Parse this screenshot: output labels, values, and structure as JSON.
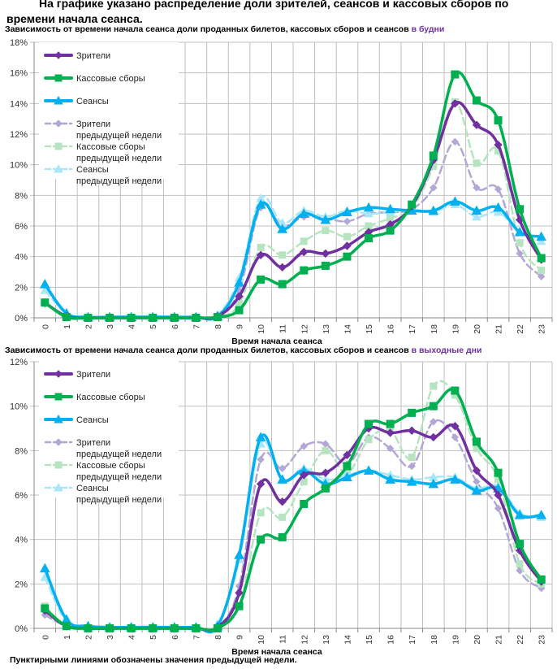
{
  "heading": "На графике указано распределение доли зрителей, сеансов и кассовых сборов по времени начала сеанса.",
  "footnote": "Пунктирными линиями обозначены значения предыдущей недели.",
  "colors": {
    "viewers": "#7030a0",
    "boxoffice": "#00b050",
    "sessions": "#00b0f0",
    "viewers_prev": "#b4a7d6",
    "boxoffice_prev": "#b7e4c0",
    "sessions_prev": "#a9e6f8",
    "grid": "#c0c0c0"
  },
  "chart_data": [
    {
      "type": "line",
      "title_prefix": "Зависимость от времени начала сеанса доли проданных билетов, кассовых сборов и сеансов",
      "title_accent": "в будни",
      "xlabel": "Время начала сеанса",
      "ylabel": "",
      "ylim": [
        0,
        18
      ],
      "yticks": [
        "0%",
        "2%",
        "4%",
        "6%",
        "8%",
        "10%",
        "12%",
        "14%",
        "16%",
        "18%"
      ],
      "x": [
        "0",
        "1",
        "2",
        "3",
        "4",
        "5",
        "6",
        "7",
        "8",
        "9",
        "10",
        "11",
        "12",
        "13",
        "14",
        "15",
        "16",
        "17",
        "18",
        "19",
        "20",
        "21",
        "22",
        "23"
      ],
      "grid": true,
      "legend_position": "top-left",
      "legend": [
        "Зрители",
        "Кассовые сборы",
        "Сеансы",
        "Зрители предыдущей недели",
        "Кассовые сборы предыдущей недели",
        "Сеансы предыдущей недели"
      ],
      "series": [
        {
          "name": "Зрители",
          "key": "viewers",
          "marker": "diamond",
          "dashed": false,
          "values": [
            1.0,
            0.1,
            0,
            0,
            0,
            0,
            0,
            0,
            0.1,
            1.4,
            4.1,
            3.3,
            4.3,
            4.2,
            4.7,
            5.6,
            6.1,
            7.3,
            10.3,
            14.0,
            12.6,
            11.3,
            6.4,
            3.8
          ]
        },
        {
          "name": "Кассовые сборы",
          "key": "boxoffice",
          "marker": "square",
          "dashed": false,
          "values": [
            1.0,
            0.05,
            0,
            0,
            0,
            0,
            0,
            0,
            0.05,
            0.5,
            2.5,
            2.2,
            3.1,
            3.4,
            4.0,
            5.2,
            5.7,
            7.4,
            10.6,
            15.9,
            14.2,
            12.9,
            7.1,
            3.9
          ]
        },
        {
          "name": "Сеансы",
          "key": "sessions",
          "marker": "triangle",
          "dashed": false,
          "values": [
            2.2,
            0.3,
            0.05,
            0.05,
            0.05,
            0.05,
            0.05,
            0.05,
            0.1,
            2.3,
            7.4,
            5.8,
            6.8,
            6.4,
            6.9,
            7.2,
            7.1,
            7.0,
            7.0,
            7.6,
            7.0,
            7.2,
            5.6,
            5.3
          ]
        },
        {
          "name": "Зрители предыдущей недели",
          "key": "viewers_prev",
          "marker": "diamond",
          "dashed": true,
          "values": [
            0.9,
            0.1,
            0,
            0,
            0,
            0,
            0,
            0,
            0.05,
            1.8,
            7.2,
            6.0,
            6.6,
            6.5,
            6.3,
            6.8,
            6.9,
            7.1,
            8.5,
            11.5,
            8.5,
            8.4,
            4.2,
            2.7
          ]
        },
        {
          "name": "Кассовые сборы предыдущей недели",
          "key": "boxoffice_prev",
          "marker": "square",
          "dashed": true,
          "values": [
            1.0,
            0.1,
            0,
            0,
            0,
            0,
            0,
            0,
            0.05,
            0.9,
            4.6,
            4.1,
            5.0,
            5.7,
            5.3,
            6.0,
            6.5,
            7.2,
            9.9,
            14.1,
            10.1,
            10.9,
            4.9,
            3.1
          ]
        },
        {
          "name": "Сеансы предыдущей недели",
          "key": "sessions_prev",
          "marker": "triangle",
          "dashed": true,
          "values": [
            1.8,
            0.3,
            0.05,
            0.05,
            0.05,
            0.05,
            0.05,
            0.05,
            0.2,
            2.6,
            7.8,
            6.2,
            7.0,
            6.6,
            7.0,
            6.8,
            6.9,
            7.1,
            6.9,
            7.4,
            6.6,
            6.9,
            5.6,
            5.0
          ]
        }
      ]
    },
    {
      "type": "line",
      "title_prefix": "Зависимость от времени начала сеанса доли проданных билетов, кассовых сборов и сеансов",
      "title_accent": "в выходные дни",
      "xlabel": "Время начала сеанса",
      "ylabel": "",
      "ylim": [
        0,
        12
      ],
      "yticks": [
        "0%",
        "2%",
        "4%",
        "6%",
        "8%",
        "10%",
        "12%"
      ],
      "x": [
        "0",
        "1",
        "2",
        "3",
        "4",
        "5",
        "6",
        "7",
        "8",
        "9",
        "10",
        "11",
        "12",
        "13",
        "14",
        "15",
        "16",
        "17",
        "18",
        "19",
        "20",
        "21",
        "22",
        "23"
      ],
      "grid": true,
      "legend_position": "top-left",
      "legend": [
        "Зрители",
        "Кассовые сборы",
        "Сеансы",
        "Зрители предыдущей недели",
        "Кассовые сборы предыдущей недели",
        "Сеансы предыдущей недели"
      ],
      "series": [
        {
          "name": "Зрители",
          "key": "viewers",
          "marker": "diamond",
          "dashed": false,
          "values": [
            0.8,
            0.1,
            0,
            0,
            0,
            0,
            0,
            0,
            0.05,
            1.6,
            6.5,
            5.7,
            6.9,
            7.0,
            7.8,
            9.0,
            8.8,
            8.9,
            8.6,
            9.1,
            7.1,
            6.0,
            3.5,
            2.1
          ]
        },
        {
          "name": "Кассовые сборы",
          "key": "boxoffice",
          "marker": "square",
          "dashed": false,
          "values": [
            0.9,
            0.1,
            0,
            0,
            0,
            0,
            0,
            0,
            0,
            1.0,
            4.0,
            4.1,
            5.6,
            6.3,
            7.3,
            9.2,
            9.2,
            9.7,
            10.0,
            10.7,
            8.4,
            7.0,
            3.8,
            2.2
          ]
        },
        {
          "name": "Сеансы",
          "key": "sessions",
          "marker": "triangle",
          "dashed": false,
          "values": [
            2.7,
            0.4,
            0.1,
            0.05,
            0.05,
            0.05,
            0.05,
            0.05,
            0.1,
            3.3,
            8.6,
            6.7,
            7.1,
            6.5,
            6.8,
            7.1,
            6.7,
            6.6,
            6.5,
            6.7,
            6.2,
            6.3,
            5.1,
            5.1
          ]
        },
        {
          "name": "Зрители предыдущей недели",
          "key": "viewers_prev",
          "marker": "diamond",
          "dashed": true,
          "values": [
            0.6,
            0.1,
            0,
            0,
            0,
            0,
            0,
            0,
            0.05,
            1.9,
            7.6,
            7.2,
            8.2,
            8.3,
            7.4,
            8.6,
            8.1,
            7.3,
            9.3,
            8.6,
            6.6,
            5.4,
            2.6,
            1.8
          ]
        },
        {
          "name": "Кассовые сборы предыдущей недели",
          "key": "boxoffice_prev",
          "marker": "square",
          "dashed": true,
          "values": [
            1.0,
            0.1,
            0,
            0,
            0,
            0,
            0,
            0,
            0.05,
            1.0,
            5.2,
            5.0,
            6.6,
            8.0,
            7.0,
            8.5,
            8.9,
            7.7,
            10.9,
            10.5,
            8.1,
            6.7,
            2.9,
            2.0
          ]
        },
        {
          "name": "Сеансы предыдущей недели",
          "key": "sessions_prev",
          "marker": "triangle",
          "dashed": true,
          "values": [
            2.3,
            0.3,
            0.1,
            0.05,
            0.05,
            0.05,
            0.05,
            0.05,
            0.2,
            3.1,
            8.3,
            6.7,
            7.2,
            6.7,
            6.9,
            7.1,
            6.9,
            6.7,
            6.8,
            6.8,
            6.3,
            6.4,
            5.2,
            5.0
          ]
        }
      ]
    }
  ]
}
